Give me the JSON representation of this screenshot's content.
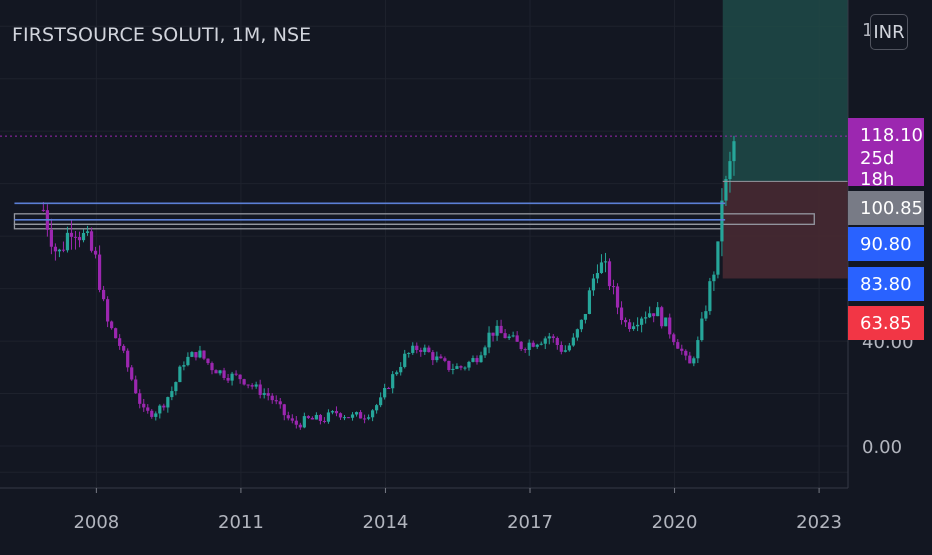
{
  "title": "FIRSTSOURCE SOLUTI, 1M, NSE",
  "currency_button": "INR",
  "top_tick": "1",
  "colors": {
    "background": "#131722",
    "up": "#26a69a",
    "down": "#9c27b0",
    "current_price": "#9c27b0",
    "entry_label": "#787b86",
    "level_label": "#2962ff",
    "stop_label": "#f23645",
    "target_zone": "#1f4a48",
    "stop_zone": "#4a2a33"
  },
  "price_labels": [
    {
      "text": "118.10",
      "color": "#9c27b0"
    },
    {
      "text": "25d 18h",
      "color": "#9c27b0"
    },
    {
      "text": "100.85",
      "color": "#787b86"
    },
    {
      "text": "90.80",
      "color": "#2962ff"
    },
    {
      "text": "83.80",
      "color": "#2962ff"
    },
    {
      "text": "63.85",
      "color": "#f23645"
    }
  ],
  "chart_data": {
    "type": "candlestick",
    "title": "FIRSTSOURCE SOLUTI, 1M, NSE",
    "x_ticks": [
      "2008",
      "2011",
      "2014",
      "2017",
      "2020",
      "2023"
    ],
    "x_tick_years": [
      2008,
      2011,
      2014,
      2017,
      2020,
      2023
    ],
    "y_ticks": [
      "0.00",
      "40.00"
    ],
    "y_tick_values": [
      0,
      40
    ],
    "xlim": [
      2006.0,
      2023.6
    ],
    "ylim": [
      -16,
      170
    ],
    "grid": true,
    "current_price": 118.1,
    "countdown": "25d 18h",
    "levels": [
      {
        "value": 100.85,
        "label": "100.85",
        "style": "entry"
      },
      {
        "value": 90.8,
        "label": "90.80",
        "style": "blue"
      },
      {
        "value": 83.8,
        "label": "83.80",
        "style": "blue"
      },
      {
        "value": 63.85,
        "label": "63.85",
        "style": "stop"
      }
    ],
    "horizontal_rays": [
      {
        "value": 92.5,
        "color": "#5b7fd6"
      },
      {
        "value": 86.2,
        "color": "#5b7fd6"
      }
    ],
    "range_boxes": [
      {
        "x0": 2006.3,
        "x1": 2022.9,
        "top": 88.5,
        "bottom": 84.5
      },
      {
        "x0": 2006.3,
        "x1": 2021.0,
        "top": 84.5,
        "bottom": 82.8
      }
    ],
    "position": {
      "x0": 2021.0,
      "x1": 2023.6,
      "entry": 100.85,
      "target": 170,
      "stop": 63.85
    },
    "close_series": [
      {
        "t": 2006.9,
        "c": 90
      },
      {
        "t": 2007.2,
        "c": 72
      },
      {
        "t": 2007.5,
        "c": 85
      },
      {
        "t": 2007.8,
        "c": 78
      },
      {
        "t": 2008.0,
        "c": 70
      },
      {
        "t": 2008.2,
        "c": 48
      },
      {
        "t": 2008.5,
        "c": 38
      },
      {
        "t": 2008.8,
        "c": 22
      },
      {
        "t": 2009.0,
        "c": 12
      },
      {
        "t": 2009.3,
        "c": 14
      },
      {
        "t": 2009.6,
        "c": 22
      },
      {
        "t": 2009.8,
        "c": 32
      },
      {
        "t": 2010.1,
        "c": 36
      },
      {
        "t": 2010.4,
        "c": 30
      },
      {
        "t": 2010.7,
        "c": 27
      },
      {
        "t": 2011.0,
        "c": 26
      },
      {
        "t": 2011.3,
        "c": 22
      },
      {
        "t": 2011.6,
        "c": 19
      },
      {
        "t": 2011.9,
        "c": 12
      },
      {
        "t": 2012.1,
        "c": 8
      },
      {
        "t": 2012.4,
        "c": 10
      },
      {
        "t": 2012.7,
        "c": 10
      },
      {
        "t": 2013.0,
        "c": 13
      },
      {
        "t": 2013.3,
        "c": 11
      },
      {
        "t": 2013.6,
        "c": 12
      },
      {
        "t": 2013.9,
        "c": 17
      },
      {
        "t": 2014.1,
        "c": 25
      },
      {
        "t": 2014.4,
        "c": 34
      },
      {
        "t": 2014.7,
        "c": 38
      },
      {
        "t": 2015.0,
        "c": 34
      },
      {
        "t": 2015.3,
        "c": 30
      },
      {
        "t": 2015.6,
        "c": 30
      },
      {
        "t": 2015.9,
        "c": 34
      },
      {
        "t": 2016.2,
        "c": 44
      },
      {
        "t": 2016.5,
        "c": 42
      },
      {
        "t": 2016.8,
        "c": 38
      },
      {
        "t": 2017.1,
        "c": 40
      },
      {
        "t": 2017.4,
        "c": 42
      },
      {
        "t": 2017.7,
        "c": 36
      },
      {
        "t": 2017.9,
        "c": 40
      },
      {
        "t": 2018.1,
        "c": 48
      },
      {
        "t": 2018.4,
        "c": 70
      },
      {
        "t": 2018.6,
        "c": 66
      },
      {
        "t": 2018.8,
        "c": 54
      },
      {
        "t": 2019.0,
        "c": 46
      },
      {
        "t": 2019.3,
        "c": 50
      },
      {
        "t": 2019.6,
        "c": 52
      },
      {
        "t": 2019.9,
        "c": 44
      },
      {
        "t": 2020.1,
        "c": 38
      },
      {
        "t": 2020.3,
        "c": 30
      },
      {
        "t": 2020.5,
        "c": 40
      },
      {
        "t": 2020.7,
        "c": 58
      },
      {
        "t": 2020.9,
        "c": 74
      },
      {
        "t": 2021.0,
        "c": 100
      },
      {
        "t": 2021.1,
        "c": 98
      },
      {
        "t": 2021.2,
        "c": 114
      },
      {
        "t": 2021.3,
        "c": 118
      }
    ]
  }
}
